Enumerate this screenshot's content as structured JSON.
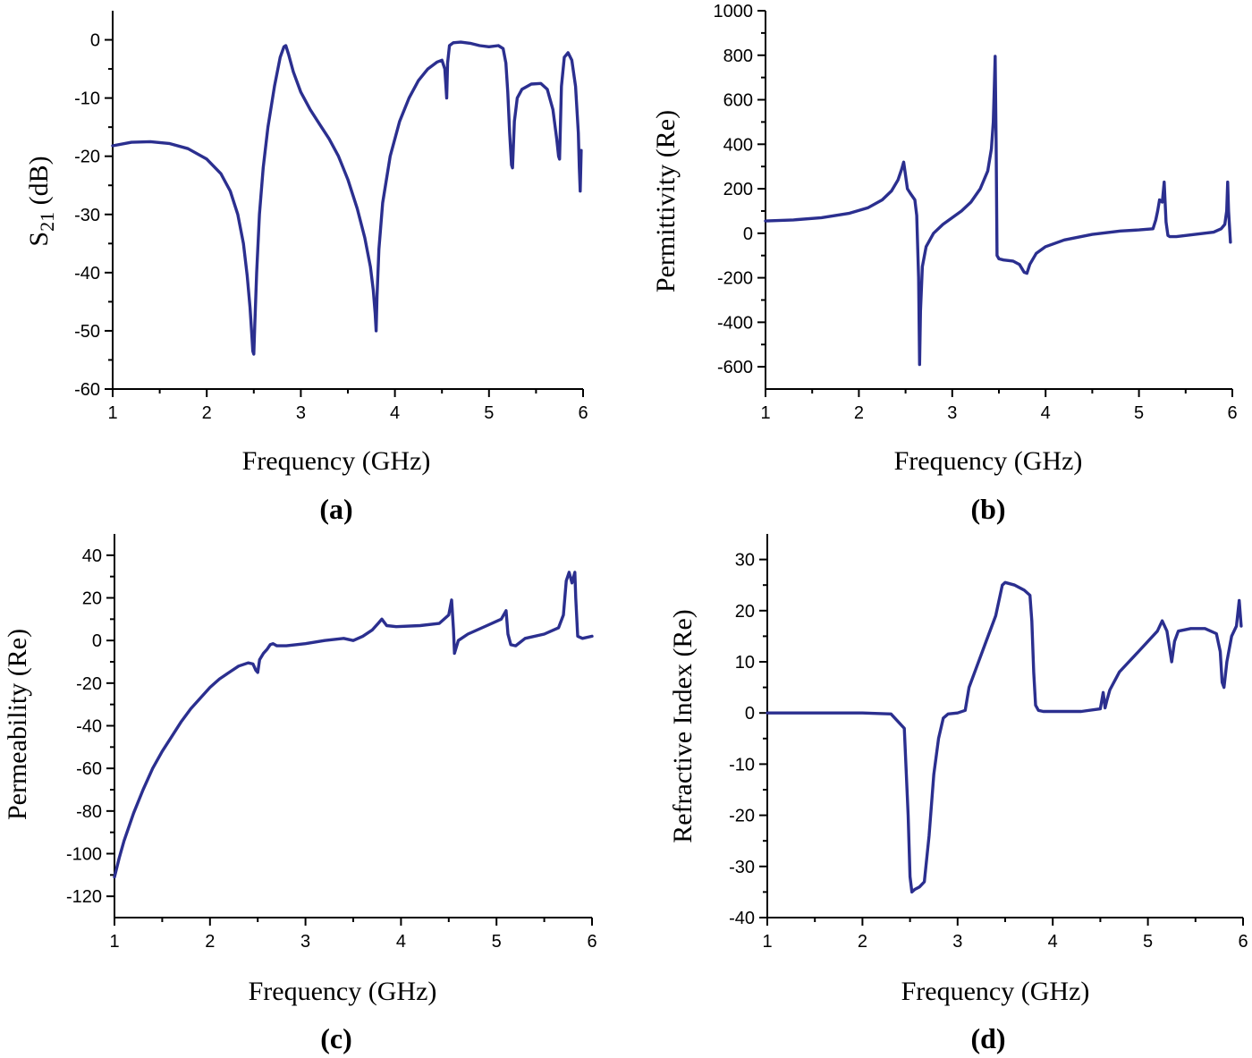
{
  "line_color": "#2b2f8f",
  "chart_data": [
    {
      "type": "line",
      "panel_label": "(a)",
      "xlabel": "Frequency (GHz)",
      "ylabel_main": "S",
      "ylabel_sub": "21",
      "ylabel_unit": " (dB)",
      "xlim": [
        1,
        6
      ],
      "ylim": [
        -60,
        5
      ],
      "xticks": [
        1,
        2,
        3,
        4,
        5,
        6
      ],
      "xtick_labels": [
        "1",
        "2",
        "3",
        "4",
        "5",
        "6"
      ],
      "yticks": [
        -60,
        -50,
        -40,
        -30,
        -20,
        -10,
        0
      ],
      "ytick_labels": [
        "-60",
        "-50",
        "-40",
        "-30",
        "-20",
        "-10",
        "0"
      ],
      "series": [
        {
          "name": "S21",
          "x": [
            1.0,
            1.2,
            1.4,
            1.6,
            1.8,
            2.0,
            2.15,
            2.25,
            2.33,
            2.39,
            2.43,
            2.46,
            2.48,
            2.49,
            2.5,
            2.51,
            2.53,
            2.56,
            2.6,
            2.65,
            2.72,
            2.78,
            2.82,
            2.84,
            2.87,
            2.92,
            3.0,
            3.1,
            3.2,
            3.3,
            3.4,
            3.5,
            3.6,
            3.68,
            3.74,
            3.77,
            3.79,
            3.8,
            3.81,
            3.83,
            3.87,
            3.95,
            4.05,
            4.15,
            4.25,
            4.35,
            4.45,
            4.5,
            4.53,
            4.55,
            4.56,
            4.58,
            4.62,
            4.7,
            4.8,
            4.9,
            5.0,
            5.1,
            5.15,
            5.18,
            5.2,
            5.22,
            5.24,
            5.25,
            5.27,
            5.3,
            5.35,
            5.45,
            5.55,
            5.62,
            5.68,
            5.72,
            5.74,
            5.75,
            5.77,
            5.8,
            5.84,
            5.88,
            5.92,
            5.95,
            5.96,
            5.97,
            5.98
          ],
          "y": [
            -18.2,
            -17.6,
            -17.5,
            -17.8,
            -18.7,
            -20.5,
            -23.0,
            -26.0,
            -30.0,
            -35.0,
            -40.5,
            -46.0,
            -51.0,
            -53.5,
            -54.0,
            -49.0,
            -40.0,
            -30.0,
            -22.0,
            -15.0,
            -8.0,
            -3.0,
            -1.2,
            -1.0,
            -2.5,
            -5.5,
            -9.0,
            -12.0,
            -14.5,
            -17.0,
            -20.0,
            -24.0,
            -29.0,
            -34.0,
            -39.0,
            -43.0,
            -47.0,
            -50.0,
            -44.0,
            -36.0,
            -28.0,
            -20.0,
            -14.0,
            -10.0,
            -7.0,
            -5.0,
            -3.8,
            -3.5,
            -5.0,
            -10.0,
            -4.0,
            -1.0,
            -0.5,
            -0.4,
            -0.6,
            -1.0,
            -1.2,
            -1.0,
            -1.5,
            -4.0,
            -9.0,
            -16.0,
            -21.5,
            -22.0,
            -14.0,
            -10.0,
            -8.5,
            -7.6,
            -7.5,
            -8.5,
            -12.0,
            -17.0,
            -20.0,
            -20.5,
            -8.0,
            -3.0,
            -2.2,
            -3.5,
            -8.0,
            -16.0,
            -22.0,
            -26.0,
            -19.0
          ]
        }
      ]
    },
    {
      "type": "line",
      "panel_label": "(b)",
      "xlabel": "Frequency (GHz)",
      "ylabel": "Permittivity (Re)",
      "xlim": [
        1,
        6
      ],
      "ylim": [
        -700,
        1000
      ],
      "xticks": [
        1,
        2,
        3,
        4,
        5,
        6
      ],
      "xtick_labels": [
        "1",
        "2",
        "3",
        "4",
        "5",
        "6"
      ],
      "yticks": [
        -600,
        -400,
        -200,
        0,
        200,
        400,
        600,
        800,
        1000
      ],
      "ytick_labels": [
        "-600",
        "-400",
        "-200",
        "0",
        "200",
        "400",
        "600",
        "800",
        "1000"
      ],
      "series": [
        {
          "name": "Permittivity",
          "x": [
            1.0,
            1.3,
            1.6,
            1.9,
            2.1,
            2.25,
            2.35,
            2.42,
            2.46,
            2.48,
            2.5,
            2.52,
            2.55,
            2.6,
            2.62,
            2.64,
            2.65,
            2.66,
            2.68,
            2.72,
            2.8,
            2.9,
            3.0,
            3.1,
            3.2,
            3.3,
            3.38,
            3.42,
            3.44,
            3.45,
            3.46,
            3.47,
            3.48,
            3.5,
            3.55,
            3.65,
            3.72,
            3.77,
            3.8,
            3.83,
            3.9,
            4.0,
            4.2,
            4.5,
            4.8,
            5.0,
            5.15,
            5.18,
            5.2,
            5.22,
            5.25,
            5.27,
            5.29,
            5.31,
            5.33,
            5.4,
            5.6,
            5.8,
            5.88,
            5.92,
            5.94,
            5.95,
            5.96,
            5.98
          ],
          "y": [
            55,
            60,
            70,
            90,
            115,
            150,
            190,
            240,
            290,
            320,
            260,
            200,
            180,
            150,
            80,
            -200,
            -590,
            -350,
            -150,
            -60,
            0,
            40,
            70,
            100,
            140,
            200,
            280,
            380,
            500,
            650,
            795,
            400,
            -100,
            -115,
            -120,
            -125,
            -140,
            -175,
            -180,
            -140,
            -90,
            -60,
            -30,
            -5,
            10,
            15,
            20,
            60,
            100,
            150,
            140,
            230,
            50,
            -10,
            -15,
            -15,
            -5,
            5,
            20,
            40,
            100,
            230,
            100,
            -40
          ]
        }
      ]
    },
    {
      "type": "line",
      "panel_label": "(c)",
      "xlabel": "Frequency (GHz)",
      "ylabel": "Permeability (Re)",
      "xlim": [
        1,
        6
      ],
      "ylim": [
        -130,
        50
      ],
      "xticks": [
        1,
        2,
        3,
        4,
        5,
        6
      ],
      "xtick_labels": [
        "1",
        "2",
        "3",
        "4",
        "5",
        "6"
      ],
      "yticks": [
        -120,
        -100,
        -80,
        -60,
        -40,
        -20,
        0,
        20,
        40
      ],
      "ytick_labels": [
        "-120",
        "-100",
        "-80",
        "-60",
        "-40",
        "-20",
        "0",
        "20",
        "40"
      ],
      "series": [
        {
          "name": "Permeability",
          "x": [
            1.0,
            1.05,
            1.1,
            1.2,
            1.3,
            1.4,
            1.5,
            1.6,
            1.7,
            1.8,
            1.9,
            2.0,
            2.1,
            2.2,
            2.3,
            2.4,
            2.45,
            2.48,
            2.5,
            2.52,
            2.56,
            2.6,
            2.63,
            2.66,
            2.7,
            2.8,
            3.0,
            3.2,
            3.4,
            3.5,
            3.6,
            3.7,
            3.76,
            3.8,
            3.85,
            3.95,
            4.2,
            4.4,
            4.5,
            4.53,
            4.55,
            4.56,
            4.6,
            4.7,
            4.9,
            5.05,
            5.1,
            5.12,
            5.15,
            5.2,
            5.3,
            5.5,
            5.65,
            5.7,
            5.73,
            5.76,
            5.79,
            5.82,
            5.83,
            5.85,
            5.9,
            6.0
          ],
          "y": [
            -111,
            -102,
            -94,
            -81,
            -70,
            -60,
            -52,
            -45,
            -38,
            -32,
            -27,
            -22,
            -18,
            -15,
            -12,
            -10.5,
            -11,
            -14,
            -15,
            -9,
            -6,
            -4,
            -2,
            -1.5,
            -2.5,
            -2.5,
            -1.5,
            0,
            1,
            0,
            2,
            5,
            8,
            10,
            7,
            6.5,
            7,
            8,
            12,
            19,
            5,
            -6,
            0,
            3,
            7,
            10,
            14,
            3,
            -2,
            -2.5,
            1,
            3,
            6,
            12,
            28,
            32,
            27,
            32,
            20,
            2,
            1,
            2
          ]
        }
      ]
    },
    {
      "type": "line",
      "panel_label": "(d)",
      "xlabel": "Frequency (GHz)",
      "ylabel": "Refractive Index (Re)",
      "xlim": [
        1,
        6
      ],
      "ylim": [
        -40,
        35
      ],
      "xticks": [
        1,
        2,
        3,
        4,
        5,
        6
      ],
      "xtick_labels": [
        "1",
        "2",
        "3",
        "4",
        "5",
        "6"
      ],
      "yticks": [
        -40,
        -30,
        -20,
        -10,
        0,
        10,
        20,
        30
      ],
      "ytick_labels": [
        "-40",
        "-30",
        "-20",
        "-10",
        "0",
        "10",
        "20",
        "30"
      ],
      "series": [
        {
          "name": "Refractive index",
          "x": [
            1.0,
            1.5,
            2.0,
            2.3,
            2.44,
            2.48,
            2.5,
            2.52,
            2.55,
            2.6,
            2.65,
            2.7,
            2.75,
            2.8,
            2.85,
            2.9,
            3.0,
            3.08,
            3.12,
            3.2,
            3.3,
            3.4,
            3.47,
            3.5,
            3.6,
            3.7,
            3.76,
            3.78,
            3.8,
            3.82,
            3.85,
            3.9,
            4.0,
            4.3,
            4.5,
            4.53,
            4.55,
            4.57,
            4.6,
            4.7,
            4.9,
            5.1,
            5.15,
            5.2,
            5.25,
            5.28,
            5.32,
            5.45,
            5.6,
            5.72,
            5.76,
            5.78,
            5.8,
            5.83,
            5.88,
            5.93,
            5.96,
            5.98
          ],
          "y": [
            0,
            0,
            0,
            -0.2,
            -3.0,
            -20.0,
            -32.0,
            -35.0,
            -34.5,
            -34.0,
            -33.0,
            -24.0,
            -12.0,
            -5.0,
            -1.0,
            -0.2,
            0,
            0.5,
            5.0,
            9.0,
            14.0,
            19.0,
            25.0,
            25.5,
            25.0,
            24.0,
            23.0,
            18.0,
            8.0,
            1.5,
            0.5,
            0.3,
            0.3,
            0.3,
            0.8,
            4.0,
            1.0,
            2.5,
            4.5,
            8.0,
            12.0,
            16.0,
            18.0,
            16.0,
            10.0,
            14.0,
            16.0,
            16.5,
            16.5,
            15.5,
            12.0,
            6.0,
            5.0,
            10.0,
            15.0,
            17.0,
            22.0,
            17.0
          ]
        }
      ]
    }
  ]
}
